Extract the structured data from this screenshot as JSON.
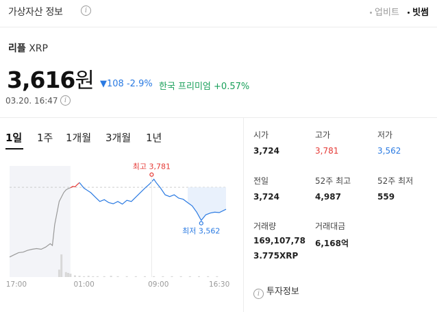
{
  "header": {
    "title": "가상자산 정보",
    "info_icon": "info-icon",
    "sources": [
      {
        "label": "업비트",
        "active": false
      },
      {
        "label": "빗썸",
        "active": true
      }
    ]
  },
  "asset": {
    "name_ko": "리플",
    "symbol": "XRP",
    "price": "3,616",
    "unit": "원",
    "change_arrow": "▼",
    "change_amount": "108",
    "change_percent": "-2.9%",
    "premium": "한국 프리미엄 +0.57%",
    "timestamp": "03.20. 16:47"
  },
  "tabs": [
    {
      "label": "1일",
      "active": true
    },
    {
      "label": "1주",
      "active": false
    },
    {
      "label": "1개월",
      "active": false
    },
    {
      "label": "3개월",
      "active": false
    },
    {
      "label": "1년",
      "active": false
    }
  ],
  "stats": [
    {
      "label": "시가",
      "value": "3,724",
      "style": "normal"
    },
    {
      "label": "고가",
      "value": "3,781",
      "style": "red"
    },
    {
      "label": "저가",
      "value": "3,562",
      "style": "blue"
    },
    {
      "label": "전일",
      "value": "3,724",
      "style": "normal"
    },
    {
      "label": "52주 최고",
      "value": "4,987",
      "style": "normal"
    },
    {
      "label": "52주 최저",
      "value": "559",
      "style": "normal"
    },
    {
      "label": "거래량",
      "value": "169,107,78",
      "value2": "3.775XRP",
      "style": "multi"
    },
    {
      "label": "거래대금",
      "value": "6,168억",
      "style": "normal"
    }
  ],
  "invest_info": "투자정보",
  "colors": {
    "up": "#e53935",
    "down": "#2a7ae2",
    "premium": "#179f59",
    "prev_line": "#999999"
  },
  "chart_data": {
    "type": "line",
    "x_ticks": [
      "17:00",
      "01:00",
      "09:00",
      "16:30"
    ],
    "high_label": "최고 3,781",
    "low_label": "최저 3,562",
    "high": 3781,
    "low": 3562,
    "prev_close": 3724,
    "ylim": [
      3320,
      3820
    ],
    "x_range": [
      0,
      96
    ],
    "prev_day_segment": [
      [
        0,
        3410
      ],
      [
        2,
        3420
      ],
      [
        4,
        3430
      ],
      [
        6,
        3432
      ],
      [
        8,
        3440
      ],
      [
        10,
        3445
      ],
      [
        12,
        3448
      ],
      [
        14,
        3445
      ],
      [
        16,
        3455
      ],
      [
        18,
        3470
      ],
      [
        19,
        3462
      ],
      [
        20,
        3555
      ],
      [
        22,
        3660
      ],
      [
        23,
        3680
      ],
      [
        24,
        3700
      ],
      [
        25,
        3712
      ],
      [
        26,
        3718
      ],
      [
        27,
        3722
      ]
    ],
    "today_up_segment": [
      [
        27,
        3722
      ],
      [
        28,
        3728
      ],
      [
        29,
        3726
      ],
      [
        30,
        3736
      ],
      [
        31,
        3745
      ]
    ],
    "today_down_segment": [
      [
        31,
        3745
      ],
      [
        33,
        3720
      ],
      [
        36,
        3700
      ],
      [
        38,
        3680
      ],
      [
        40,
        3660
      ],
      [
        42,
        3668
      ],
      [
        44,
        3655
      ],
      [
        46,
        3650
      ],
      [
        48,
        3660
      ],
      [
        50,
        3648
      ],
      [
        52,
        3665
      ],
      [
        54,
        3660
      ],
      [
        56,
        3680
      ],
      [
        58,
        3700
      ],
      [
        60,
        3720
      ],
      [
        62,
        3738
      ],
      [
        64,
        3760
      ],
      [
        65,
        3745
      ],
      [
        67,
        3720
      ],
      [
        69,
        3690
      ],
      [
        71,
        3682
      ],
      [
        73,
        3690
      ],
      [
        75,
        3675
      ],
      [
        77,
        3670
      ],
      [
        79,
        3655
      ],
      [
        81,
        3640
      ],
      [
        83,
        3612
      ],
      [
        85,
        3575
      ],
      [
        87,
        3600
      ],
      [
        89,
        3608
      ],
      [
        91,
        3612
      ],
      [
        93,
        3610
      ],
      [
        96,
        3625
      ]
    ],
    "high_point": [
      63,
      3781
    ],
    "low_point": [
      85,
      3562
    ],
    "volume_bars": [
      [
        22,
        0.18
      ],
      [
        23,
        0.55
      ],
      [
        25,
        0.12
      ],
      [
        26,
        0.1
      ],
      [
        27,
        0.08
      ],
      [
        29,
        0.04
      ],
      [
        31,
        0.03
      ],
      [
        33,
        0.02
      ],
      [
        35,
        0.03
      ],
      [
        37,
        0.02
      ],
      [
        39,
        0.02
      ],
      [
        42,
        0.02
      ],
      [
        45,
        0.03
      ],
      [
        48,
        0.02
      ],
      [
        52,
        0.02
      ],
      [
        56,
        0.02
      ],
      [
        60,
        0.02
      ],
      [
        64,
        0.02
      ],
      [
        68,
        0.02
      ],
      [
        72,
        0.02
      ],
      [
        76,
        0.02
      ],
      [
        80,
        0.02
      ],
      [
        84,
        0.02
      ],
      [
        88,
        0.02
      ],
      [
        92,
        0.02
      ]
    ]
  }
}
